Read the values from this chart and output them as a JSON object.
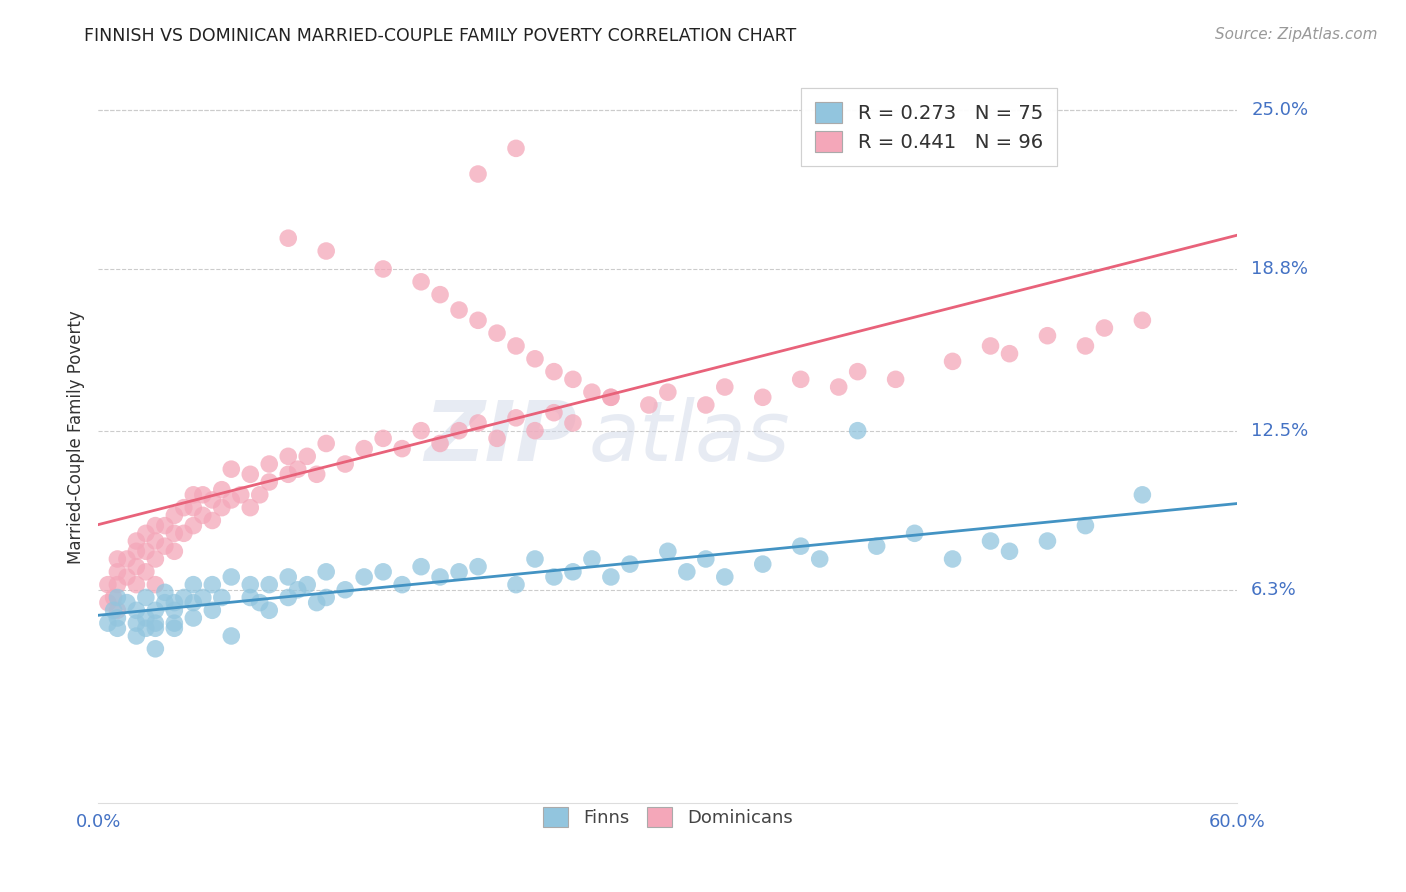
{
  "title": "FINNISH VS DOMINICAN MARRIED-COUPLE FAMILY POVERTY CORRELATION CHART",
  "source": "Source: ZipAtlas.com",
  "ylabel": "Married-Couple Family Poverty",
  "ytick_labels": [
    "25.0%",
    "18.8%",
    "12.5%",
    "6.3%"
  ],
  "ytick_values": [
    0.25,
    0.188,
    0.125,
    0.063
  ],
  "xmin": 0.0,
  "xmax": 0.6,
  "ymin": -0.02,
  "ymax": 0.265,
  "legend_r1": "R = 0.273",
  "legend_n1": "N = 75",
  "legend_r2": "R = 0.441",
  "legend_n2": "N = 96",
  "finns_color": "#92c5de",
  "dominicans_color": "#f4a7b9",
  "finns_line_color": "#4393c3",
  "dominicans_line_color": "#e8627a",
  "watermark_zip": "ZIP",
  "watermark_atlas": "atlas",
  "finns_scatter_x": [
    0.005,
    0.008,
    0.01,
    0.01,
    0.01,
    0.015,
    0.02,
    0.02,
    0.02,
    0.025,
    0.025,
    0.025,
    0.03,
    0.03,
    0.03,
    0.03,
    0.035,
    0.035,
    0.04,
    0.04,
    0.04,
    0.04,
    0.045,
    0.05,
    0.05,
    0.05,
    0.055,
    0.06,
    0.06,
    0.065,
    0.07,
    0.07,
    0.08,
    0.08,
    0.085,
    0.09,
    0.09,
    0.1,
    0.1,
    0.105,
    0.11,
    0.115,
    0.12,
    0.12,
    0.13,
    0.14,
    0.15,
    0.16,
    0.17,
    0.18,
    0.19,
    0.2,
    0.22,
    0.23,
    0.24,
    0.25,
    0.26,
    0.27,
    0.28,
    0.3,
    0.31,
    0.32,
    0.33,
    0.35,
    0.37,
    0.38,
    0.4,
    0.41,
    0.43,
    0.45,
    0.47,
    0.48,
    0.5,
    0.52,
    0.55
  ],
  "finns_scatter_y": [
    0.05,
    0.055,
    0.048,
    0.06,
    0.052,
    0.058,
    0.045,
    0.05,
    0.055,
    0.048,
    0.052,
    0.06,
    0.05,
    0.055,
    0.048,
    0.04,
    0.058,
    0.062,
    0.055,
    0.05,
    0.058,
    0.048,
    0.06,
    0.052,
    0.058,
    0.065,
    0.06,
    0.065,
    0.055,
    0.06,
    0.068,
    0.045,
    0.06,
    0.065,
    0.058,
    0.065,
    0.055,
    0.068,
    0.06,
    0.063,
    0.065,
    0.058,
    0.07,
    0.06,
    0.063,
    0.068,
    0.07,
    0.065,
    0.072,
    0.068,
    0.07,
    0.072,
    0.065,
    0.075,
    0.068,
    0.07,
    0.075,
    0.068,
    0.073,
    0.078,
    0.07,
    0.075,
    0.068,
    0.073,
    0.08,
    0.075,
    0.125,
    0.08,
    0.085,
    0.075,
    0.082,
    0.078,
    0.082,
    0.088,
    0.1
  ],
  "dominicans_scatter_x": [
    0.005,
    0.005,
    0.008,
    0.01,
    0.01,
    0.01,
    0.01,
    0.015,
    0.015,
    0.02,
    0.02,
    0.02,
    0.02,
    0.025,
    0.025,
    0.025,
    0.03,
    0.03,
    0.03,
    0.03,
    0.035,
    0.035,
    0.04,
    0.04,
    0.04,
    0.045,
    0.045,
    0.05,
    0.05,
    0.05,
    0.055,
    0.055,
    0.06,
    0.06,
    0.065,
    0.065,
    0.07,
    0.07,
    0.075,
    0.08,
    0.08,
    0.085,
    0.09,
    0.09,
    0.1,
    0.1,
    0.105,
    0.11,
    0.115,
    0.12,
    0.13,
    0.14,
    0.15,
    0.16,
    0.17,
    0.18,
    0.19,
    0.2,
    0.21,
    0.22,
    0.23,
    0.24,
    0.25,
    0.27,
    0.29,
    0.3,
    0.32,
    0.33,
    0.35,
    0.37,
    0.39,
    0.4,
    0.42,
    0.45,
    0.47,
    0.48,
    0.5,
    0.52,
    0.53,
    0.55,
    0.2,
    0.22,
    0.1,
    0.12,
    0.15,
    0.17,
    0.18,
    0.19,
    0.2,
    0.21,
    0.22,
    0.23,
    0.24,
    0.25,
    0.26,
    0.27
  ],
  "dominicans_scatter_y": [
    0.058,
    0.065,
    0.06,
    0.055,
    0.065,
    0.07,
    0.075,
    0.068,
    0.075,
    0.065,
    0.072,
    0.078,
    0.082,
    0.07,
    0.078,
    0.085,
    0.075,
    0.082,
    0.088,
    0.065,
    0.08,
    0.088,
    0.078,
    0.085,
    0.092,
    0.085,
    0.095,
    0.088,
    0.095,
    0.1,
    0.092,
    0.1,
    0.09,
    0.098,
    0.095,
    0.102,
    0.098,
    0.11,
    0.1,
    0.095,
    0.108,
    0.1,
    0.105,
    0.112,
    0.108,
    0.115,
    0.11,
    0.115,
    0.108,
    0.12,
    0.112,
    0.118,
    0.122,
    0.118,
    0.125,
    0.12,
    0.125,
    0.128,
    0.122,
    0.13,
    0.125,
    0.132,
    0.128,
    0.138,
    0.135,
    0.14,
    0.135,
    0.142,
    0.138,
    0.145,
    0.142,
    0.148,
    0.145,
    0.152,
    0.158,
    0.155,
    0.162,
    0.158,
    0.165,
    0.168,
    0.225,
    0.235,
    0.2,
    0.195,
    0.188,
    0.183,
    0.178,
    0.172,
    0.168,
    0.163,
    0.158,
    0.153,
    0.148,
    0.145,
    0.14,
    0.138
  ]
}
